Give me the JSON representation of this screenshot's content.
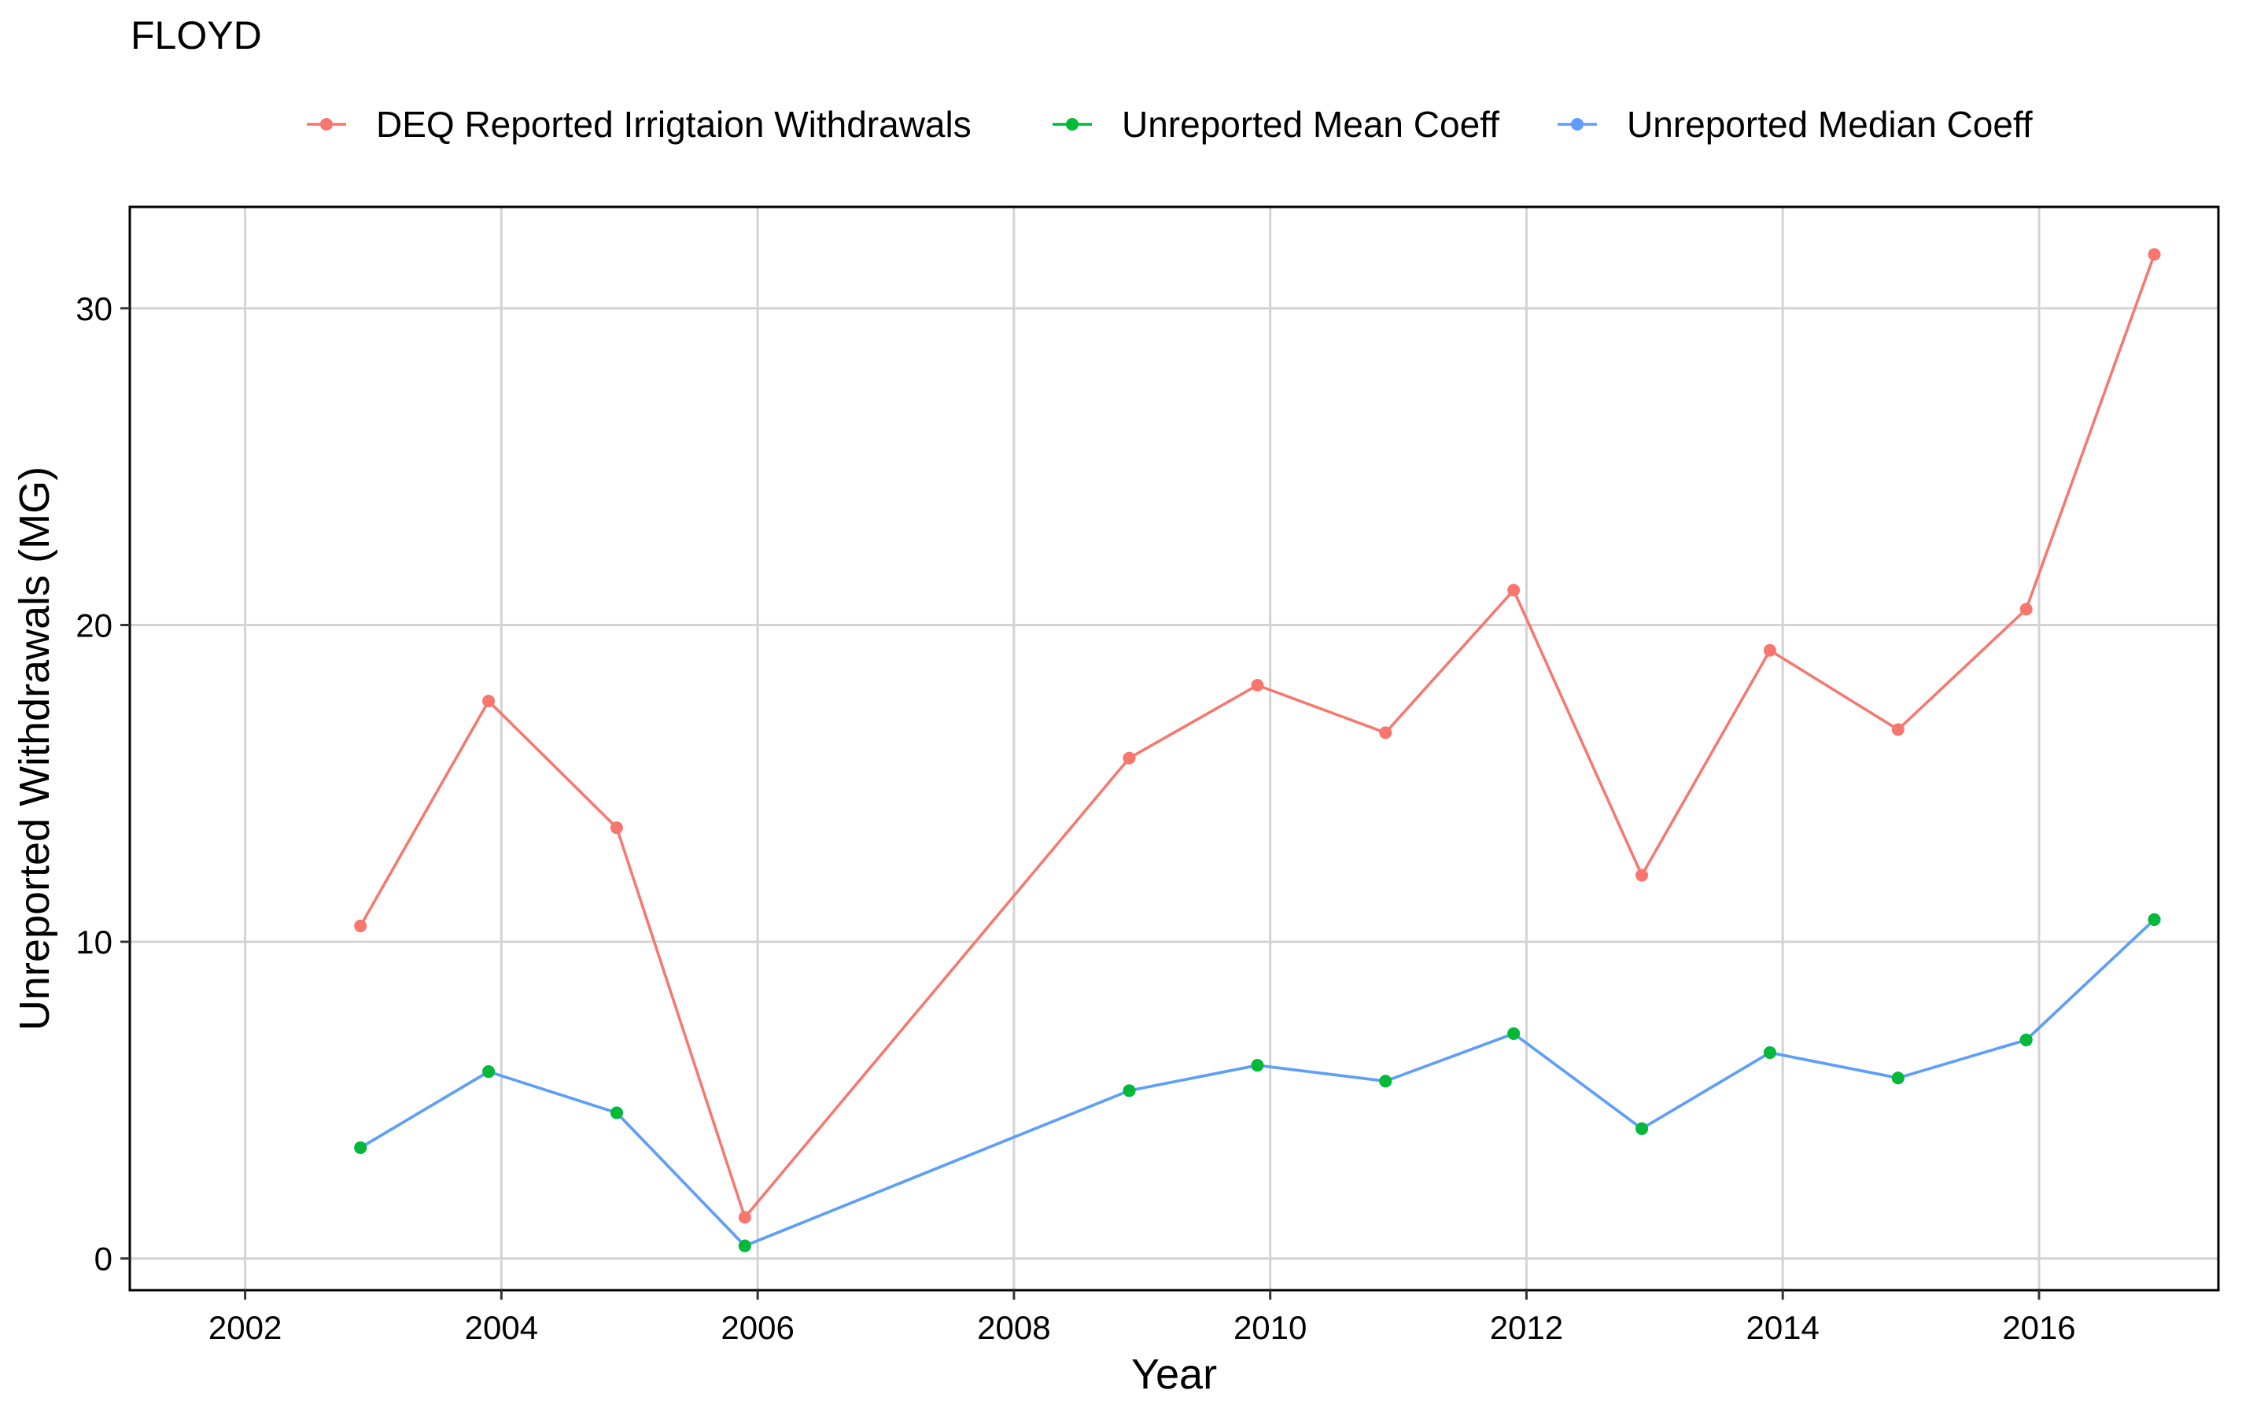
{
  "chart_data": {
    "type": "line",
    "title": "FLOYD",
    "xlabel": "Year",
    "ylabel": "Unreported Withdrawals (MG)",
    "xlim": [
      2001.1,
      2017.4
    ],
    "ylim": [
      -1.0,
      33.2
    ],
    "x_ticks": [
      2002,
      2004,
      2006,
      2008,
      2010,
      2012,
      2014,
      2016
    ],
    "x_tick_labels": [
      "2002",
      "2004",
      "2006",
      "2008",
      "2010",
      "2012",
      "2014",
      "2016"
    ],
    "y_ticks": [
      0,
      10,
      20,
      30
    ],
    "y_tick_labels": [
      "0",
      "10",
      "20",
      "30"
    ],
    "grid": true,
    "legend_position": "top",
    "x": [
      2002.9,
      2003.9,
      2004.9,
      2005.9,
      2008.9,
      2009.9,
      2010.9,
      2011.9,
      2012.9,
      2013.9,
      2014.9,
      2015.9,
      2016.9
    ],
    "series": [
      {
        "name": "DEQ Reported Irrigtaion Withdrawals",
        "color": "#F8766D",
        "values": [
          10.5,
          17.6,
          13.6,
          1.3,
          15.8,
          18.1,
          16.6,
          21.1,
          12.1,
          19.2,
          16.7,
          20.5,
          31.7
        ]
      },
      {
        "name": "Unreported Mean Coeff",
        "color": "#00BA38",
        "values": [
          3.5,
          5.9,
          4.6,
          0.4,
          5.3,
          6.1,
          5.6,
          7.1,
          4.1,
          6.5,
          5.7,
          6.9,
          10.7
        ]
      },
      {
        "name": "Unreported Median Coeff",
        "color": "#619CFF",
        "values": [
          3.5,
          5.9,
          4.6,
          0.4,
          5.3,
          6.1,
          5.6,
          7.1,
          4.1,
          6.5,
          5.7,
          6.9,
          10.7
        ]
      }
    ]
  }
}
